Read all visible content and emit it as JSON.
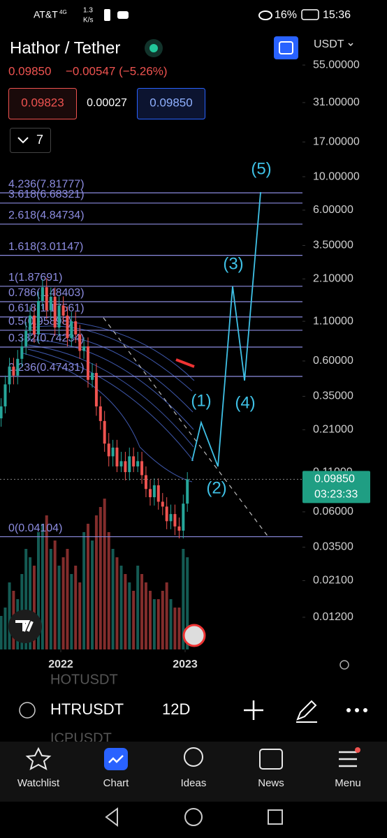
{
  "status_bar": {
    "carrier": "AT&T",
    "network": "4G",
    "speed": "1.3",
    "speed_unit": "K/s",
    "battery": "16%",
    "time": "15:36"
  },
  "header": {
    "title": "Hathor / Tether",
    "last_price": "0.09850",
    "change": "−0.00547 (−5.26%)",
    "bid": "0.09823",
    "spread": "0.00027",
    "ask": "0.09850",
    "indicator_count": "7",
    "currency": "USDT"
  },
  "chart_data": {
    "type": "candlestick",
    "log_scale": true,
    "x": [
      2021.52,
      2021.553,
      2021.587,
      2021.62,
      2021.653,
      2021.687,
      2021.72,
      2021.753,
      2021.786,
      2021.82,
      2021.853,
      2021.886,
      2021.92,
      2021.953,
      2021.986,
      2022.02,
      2022.053,
      2022.086,
      2022.119,
      2022.153,
      2022.186,
      2022.219,
      2022.253,
      2022.286,
      2022.319,
      2022.352,
      2022.386,
      2022.419,
      2022.452,
      2022.486,
      2022.519,
      2022.552,
      2022.585,
      2022.619,
      2022.652,
      2022.685,
      2022.719,
      2022.752,
      2022.785,
      2022.819,
      2022.852,
      2022.885,
      2022.918,
      2022.952,
      2022.985,
      2023.018
    ],
    "open": [
      0.25,
      0.3,
      0.42,
      0.55,
      0.48,
      0.62,
      0.75,
      0.95,
      1.2,
      0.9,
      1.5,
      1.85,
      1.3,
      1.6,
      1.0,
      1.4,
      1.2,
      0.85,
      1.1,
      0.9,
      0.7,
      0.75,
      0.45,
      0.5,
      0.3,
      0.24,
      0.17,
      0.14,
      0.16,
      0.12,
      0.13,
      0.11,
      0.14,
      0.12,
      0.13,
      0.105,
      0.085,
      0.075,
      0.09,
      0.07,
      0.065,
      0.052,
      0.058,
      0.048,
      0.045,
      0.068
    ],
    "high": [
      0.34,
      0.48,
      0.63,
      0.63,
      0.71,
      0.86,
      1.09,
      1.38,
      1.38,
      1.73,
      2.1,
      2.13,
      1.84,
      1.84,
      1.61,
      1.61,
      1.38,
      1.27,
      1.27,
      1.04,
      0.86,
      0.86,
      0.58,
      0.58,
      0.35,
      0.28,
      0.2,
      0.18,
      0.18,
      0.15,
      0.15,
      0.16,
      0.16,
      0.15,
      0.15,
      0.12,
      0.098,
      0.1,
      0.1,
      0.08,
      0.075,
      0.067,
      0.067,
      0.055,
      0.078,
      0.11
    ],
    "low": [
      0.22,
      0.27,
      0.37,
      0.42,
      0.42,
      0.55,
      0.66,
      0.84,
      0.79,
      0.79,
      1.32,
      1.14,
      1.14,
      0.88,
      0.88,
      1.06,
      0.75,
      0.75,
      0.79,
      0.62,
      0.62,
      0.4,
      0.4,
      0.26,
      0.21,
      0.15,
      0.12,
      0.12,
      0.11,
      0.11,
      0.097,
      0.097,
      0.11,
      0.11,
      0.092,
      0.075,
      0.066,
      0.066,
      0.062,
      0.057,
      0.046,
      0.046,
      0.042,
      0.04,
      0.04,
      0.06
    ],
    "close": [
      0.3,
      0.42,
      0.55,
      0.48,
      0.62,
      0.75,
      0.95,
      1.2,
      0.9,
      1.5,
      1.85,
      1.3,
      1.6,
      1.0,
      1.4,
      1.2,
      0.85,
      1.1,
      0.9,
      0.7,
      0.75,
      0.45,
      0.5,
      0.3,
      0.24,
      0.17,
      0.14,
      0.16,
      0.12,
      0.13,
      0.11,
      0.14,
      0.12,
      0.13,
      0.105,
      0.085,
      0.075,
      0.09,
      0.07,
      0.065,
      0.052,
      0.058,
      0.048,
      0.045,
      0.068,
      0.0985
    ],
    "volume": [
      20,
      25,
      40,
      35,
      30,
      45,
      60,
      55,
      50,
      70,
      75,
      80,
      60,
      65,
      50,
      55,
      60,
      45,
      50,
      40,
      70,
      75,
      65,
      80,
      85,
      90,
      70,
      60,
      55,
      50,
      45,
      40,
      35,
      50,
      45,
      40,
      35,
      30,
      30,
      35,
      40,
      30,
      25,
      25,
      60,
      55
    ],
    "up_color": "#26a69a",
    "down_color": "#ef5350",
    "xlim": [
      2021.511,
      2023.927
    ],
    "xticks": [
      2022,
      2023
    ],
    "ylim": [
      0.00734,
      96.9
    ],
    "yticks": [
      {
        "value": 55,
        "label": "55.00000"
      },
      {
        "value": 31,
        "label": "31.00000"
      },
      {
        "value": 17,
        "label": "17.00000"
      },
      {
        "value": 10,
        "label": "10.00000"
      },
      {
        "value": 6,
        "label": "6.00000"
      },
      {
        "value": 3.5,
        "label": "3.50000"
      },
      {
        "value": 2.1,
        "label": "2.10000"
      },
      {
        "value": 1.1,
        "label": "1.10000"
      },
      {
        "value": 0.6,
        "label": "0.60000"
      },
      {
        "value": 0.35,
        "label": "0.35000"
      },
      {
        "value": 0.21,
        "label": "0.21000"
      },
      {
        "value": 0.11,
        "label": "0.11000"
      },
      {
        "value": 0.06,
        "label": "0.06000"
      },
      {
        "value": 0.035,
        "label": "0.03500"
      },
      {
        "value": 0.021,
        "label": "0.02100"
      },
      {
        "value": 0.012,
        "label": "0.01200"
      }
    ],
    "fib_levels": [
      {
        "value": 7.81777,
        "label": "4.236(7.81777)"
      },
      {
        "value": 6.68321,
        "label": "3.618(6.68321)"
      },
      {
        "value": 4.84734,
        "label": "2.618(4.84734)"
      },
      {
        "value": 3.01147,
        "label": "1.618(3.01147)"
      },
      {
        "value": 1.87691,
        "label": "1(1.87691)"
      },
      {
        "value": 1.48403,
        "label": "0.786(1.48403)"
      },
      {
        "value": 1.17561,
        "label": "0.618(1.17561)"
      },
      {
        "value": 0.95898,
        "label": "0.5(0.95898)"
      },
      {
        "value": 0.74234,
        "label": "0.382(0.74234)"
      },
      {
        "value": 0.47431,
        "label": "0.236(0.47431)"
      },
      {
        "value": 0.04104,
        "label": "0(0.04104)"
      }
    ],
    "fib_color": "#8c8ce0",
    "waves": {
      "labels": [
        "(1)",
        "(2)",
        "(3)",
        "(4)",
        "(5)"
      ],
      "x": [
        2023.056,
        2023.129,
        2023.264,
        2023.382,
        2023.478,
        2023.607
      ],
      "y": [
        0.1305,
        0.2346,
        0.1199,
        1.876,
        0.445,
        7.91
      ],
      "color": "#3fc1e6"
    },
    "last_price": {
      "value": 0.0985,
      "label": "0.09850",
      "countdown": "03:23:33"
    }
  },
  "toolbar": {
    "symbol": "HTRUSDT",
    "interval": "12D",
    "ghost_above": "HOTUSDT",
    "ghost_below": "ICPUSDT"
  },
  "nav": {
    "items": [
      "Watchlist",
      "Chart",
      "Ideas",
      "News",
      "Menu"
    ]
  }
}
